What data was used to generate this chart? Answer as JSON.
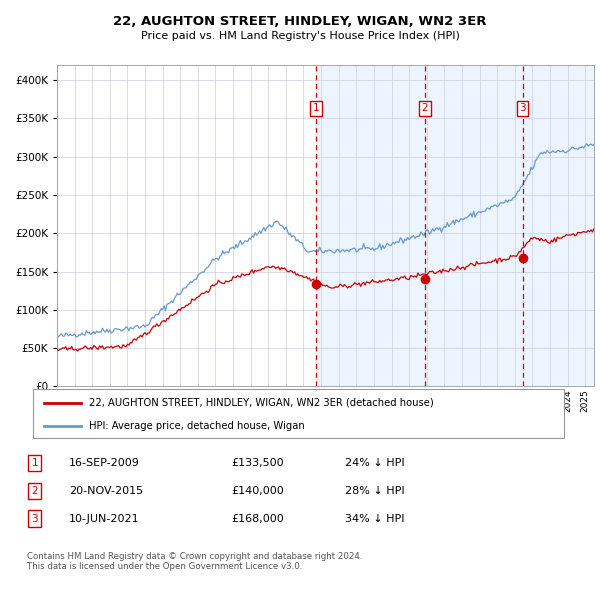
{
  "title": "22, AUGHTON STREET, HINDLEY, WIGAN, WN2 3ER",
  "subtitle": "Price paid vs. HM Land Registry's House Price Index (HPI)",
  "legend_line1": "22, AUGHTON STREET, HINDLEY, WIGAN, WN2 3ER (detached house)",
  "legend_line2": "HPI: Average price, detached house, Wigan",
  "transactions": [
    {
      "num": 1,
      "date": "16-SEP-2009",
      "price": 133500,
      "pct": "24%",
      "dir": "↓"
    },
    {
      "num": 2,
      "date": "20-NOV-2015",
      "price": 140000,
      "pct": "28%",
      "dir": "↓"
    },
    {
      "num": 3,
      "date": "10-JUN-2021",
      "price": 168000,
      "pct": "34%",
      "dir": "↓"
    }
  ],
  "transaction_dates_decimal": [
    2009.71,
    2015.89,
    2021.44
  ],
  "transaction_prices": [
    133500,
    140000,
    168000
  ],
  "footer": "Contains HM Land Registry data © Crown copyright and database right 2024.\nThis data is licensed under the Open Government Licence v3.0.",
  "red_line_color": "#cc0000",
  "blue_line_color": "#6699cc",
  "background_color": "#ddeeff",
  "grid_color": "#ccccdd",
  "box_color": "#cc0000",
  "ylim": [
    0,
    420000
  ],
  "xlim_start": 1995.0,
  "xlim_end": 2025.5
}
